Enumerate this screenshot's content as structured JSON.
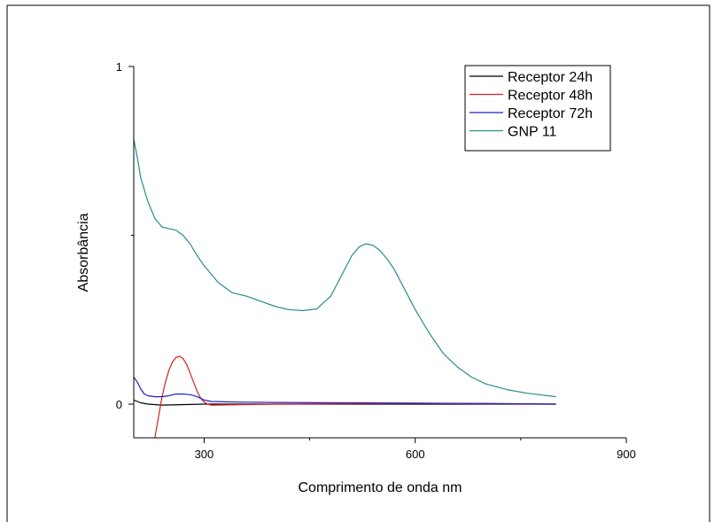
{
  "chart_data": {
    "type": "line",
    "title": "",
    "xlabel": "Comprimento de onda nm",
    "ylabel": "Absorbância",
    "xlim": [
      200,
      900
    ],
    "ylim": [
      -0.1,
      1
    ],
    "xticks": [
      300,
      600,
      900
    ],
    "xtick_labels": [
      "300",
      "600",
      "900"
    ],
    "yticks": [
      0,
      1
    ],
    "ytick_labels": [
      "0",
      "1"
    ],
    "grid": false,
    "legend": "top-right",
    "series": [
      {
        "name": "Receptor 24h",
        "color": "#000000",
        "x": [
          200,
          210,
          220,
          240,
          300,
          400,
          500,
          600,
          700,
          800
        ],
        "y": [
          0.012,
          0.004,
          0.0,
          -0.003,
          0.0,
          0.0,
          0.0,
          0.0,
          0.0,
          0.0
        ]
      },
      {
        "name": "Receptor 48h",
        "color": "#d62020",
        "x": [
          230,
          235,
          240,
          245,
          250,
          255,
          260,
          265,
          270,
          275,
          280,
          285,
          290,
          295,
          300,
          305,
          310,
          400,
          600,
          800
        ],
        "y": [
          -0.1,
          -0.04,
          0.02,
          0.065,
          0.1,
          0.125,
          0.138,
          0.142,
          0.135,
          0.118,
          0.093,
          0.065,
          0.038,
          0.018,
          0.006,
          0.0,
          -0.003,
          0.0,
          0.002,
          0.0
        ]
      },
      {
        "name": "Receptor 72h",
        "color": "#1f1fc8",
        "x": [
          200,
          205,
          210,
          215,
          220,
          230,
          240,
          250,
          260,
          270,
          280,
          290,
          300,
          310,
          350,
          400,
          500,
          600,
          700,
          800
        ],
        "y": [
          0.08,
          0.065,
          0.045,
          0.03,
          0.025,
          0.022,
          0.022,
          0.025,
          0.03,
          0.03,
          0.028,
          0.022,
          0.012,
          0.008,
          0.006,
          0.005,
          0.004,
          0.003,
          0.002,
          0.0
        ]
      },
      {
        "name": "GNP 11",
        "color": "#2a8c8c",
        "x": [
          200,
          205,
          210,
          220,
          230,
          240,
          250,
          260,
          270,
          280,
          290,
          300,
          320,
          340,
          360,
          380,
          400,
          420,
          440,
          460,
          480,
          500,
          510,
          520,
          530,
          540,
          550,
          560,
          570,
          580,
          600,
          620,
          640,
          660,
          680,
          700,
          730,
          760,
          800
        ],
        "y": [
          0.785,
          0.73,
          0.67,
          0.6,
          0.55,
          0.525,
          0.52,
          0.515,
          0.5,
          0.475,
          0.44,
          0.41,
          0.36,
          0.33,
          0.32,
          0.305,
          0.29,
          0.28,
          0.277,
          0.282,
          0.32,
          0.4,
          0.44,
          0.465,
          0.475,
          0.47,
          0.455,
          0.43,
          0.4,
          0.36,
          0.28,
          0.21,
          0.15,
          0.11,
          0.08,
          0.06,
          0.043,
          0.032,
          0.022
        ]
      }
    ]
  }
}
